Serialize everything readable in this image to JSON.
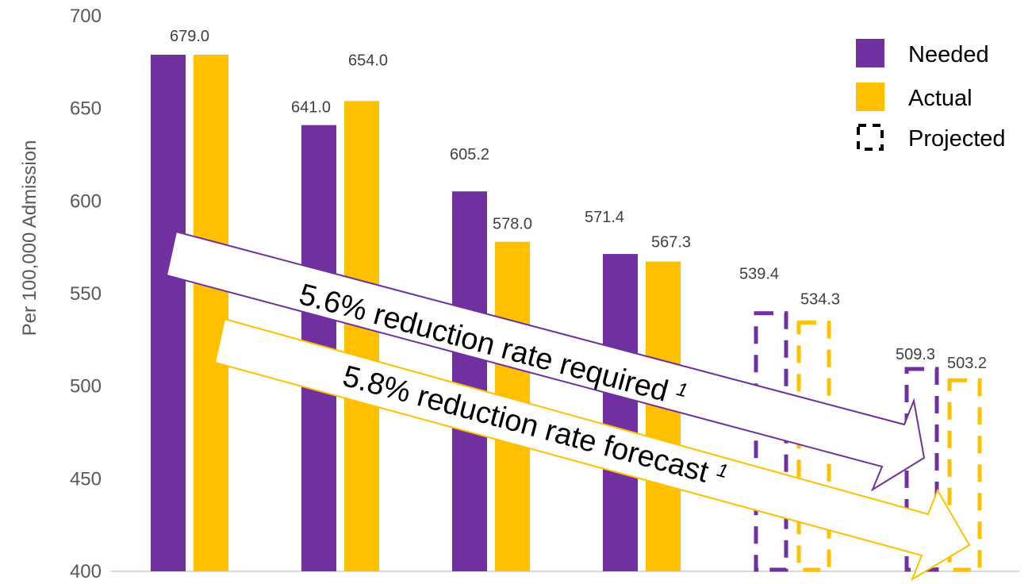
{
  "chart_data": {
    "type": "bar",
    "ylabel": "Per 100,000 Admission",
    "ylim": [
      400,
      700
    ],
    "yticks": [
      "400",
      "450",
      "500",
      "550",
      "600",
      "650",
      "700"
    ],
    "categories": [
      "",
      "",
      "",
      "",
      "",
      ""
    ],
    "projected_from_index": 4,
    "series": [
      {
        "name": "Needed",
        "color": "#7030A0",
        "values": [
          679.0,
          641.0,
          605.2,
          571.4,
          539.4,
          509.3
        ],
        "labels": [
          "679.0",
          "641.0",
          "605.2",
          "571.4",
          "539.4",
          "509.3"
        ]
      },
      {
        "name": "Actual",
        "color": "#FFC000",
        "values": [
          679.0,
          654.0,
          578.0,
          567.3,
          534.3,
          503.2
        ],
        "labels": [
          "",
          "654.0",
          "578.0",
          "567.3",
          "534.3",
          "503.2"
        ]
      }
    ],
    "legend": {
      "position": "top-right",
      "entries": [
        {
          "label": "Needed",
          "style": "solid",
          "color": "#7030A0"
        },
        {
          "label": "Actual",
          "style": "solid",
          "color": "#FFC000"
        },
        {
          "label": "Projected",
          "style": "dashed",
          "color": "#000000"
        }
      ]
    },
    "annotations": [
      {
        "text": "5.6% reduction rate required",
        "superscript": "1",
        "color": "#7030A0"
      },
      {
        "text": "5.8% reduction rate forecast",
        "superscript": "1",
        "color": "#FFC000"
      }
    ],
    "grid": false
  }
}
